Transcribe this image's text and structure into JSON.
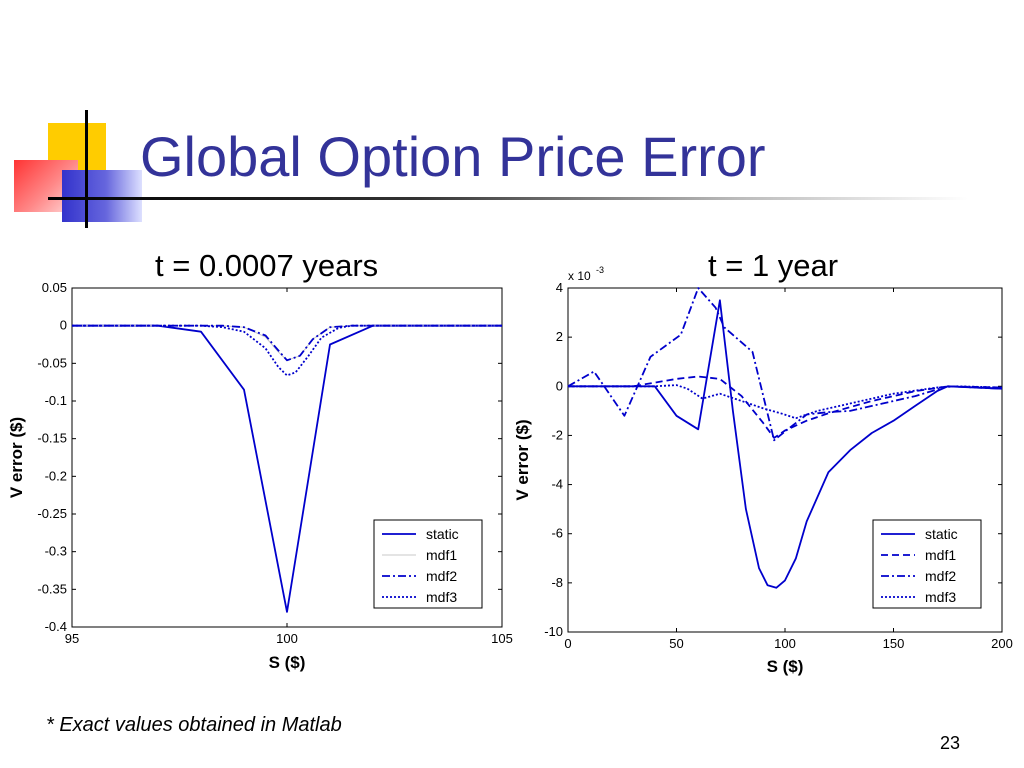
{
  "slide": {
    "title": "Global Option Price Error",
    "footnote": "* Exact values obtained in Matlab",
    "page_number": "23",
    "colors": {
      "title": "#333399",
      "deco_yellow": "#ffcc00",
      "deco_red": "#ff3333",
      "deco_blue": "#3333cc",
      "series": "#0000cc"
    }
  },
  "chart_data": [
    {
      "type": "line",
      "title": "t = 0.0007 years",
      "xlabel": "S ($)",
      "ylabel": "V error ($)",
      "xlim": [
        95,
        105
      ],
      "ylim": [
        -0.4,
        0.05
      ],
      "x_ticks": [
        95,
        100,
        105
      ],
      "y_ticks": [
        0.05,
        0,
        -0.05,
        -0.1,
        -0.15,
        -0.2,
        -0.25,
        -0.3,
        -0.35,
        -0.4
      ],
      "x_tick_labels": [
        "95",
        "100",
        "105"
      ],
      "y_tick_labels": [
        "0.05",
        "0",
        "-0.05",
        "-0.1",
        "-0.15",
        "-0.2",
        "-0.25",
        "-0.3",
        "-0.35",
        "-0.4"
      ],
      "legend_position": "bottom-right",
      "series": [
        {
          "name": "static",
          "style": "solid",
          "color": "#0000cc",
          "points": [
            [
              95,
              0
            ],
            [
              97,
              0
            ],
            [
              98,
              -0.008
            ],
            [
              99,
              -0.085
            ],
            [
              100,
              -0.38
            ],
            [
              101,
              -0.025
            ],
            [
              102,
              0
            ],
            [
              105,
              0
            ]
          ]
        },
        {
          "name": "mdf1",
          "style": "thin",
          "color": "#c8c8c8",
          "points": [
            [
              95,
              0
            ],
            [
              98.5,
              0
            ],
            [
              99,
              -0.002
            ],
            [
              99.5,
              -0.015
            ],
            [
              99.8,
              -0.035
            ],
            [
              100,
              -0.046
            ],
            [
              100.3,
              -0.04
            ],
            [
              100.6,
              -0.018
            ],
            [
              101,
              -0.002
            ],
            [
              101.5,
              0
            ],
            [
              105,
              0
            ]
          ]
        },
        {
          "name": "mdf2",
          "style": "dashdot",
          "color": "#0000cc",
          "points": [
            [
              95,
              0
            ],
            [
              98.5,
              0
            ],
            [
              99,
              -0.002
            ],
            [
              99.5,
              -0.013
            ],
            [
              99.8,
              -0.033
            ],
            [
              100,
              -0.046
            ],
            [
              100.3,
              -0.04
            ],
            [
              100.6,
              -0.018
            ],
            [
              101,
              -0.002
            ],
            [
              101.5,
              0
            ],
            [
              105,
              0
            ]
          ]
        },
        {
          "name": "mdf3",
          "style": "dotted",
          "color": "#0000cc",
          "points": [
            [
              95,
              0
            ],
            [
              98,
              0
            ],
            [
              98.5,
              -0.002
            ],
            [
              99,
              -0.008
            ],
            [
              99.5,
              -0.03
            ],
            [
              99.8,
              -0.055
            ],
            [
              100,
              -0.066
            ],
            [
              100.2,
              -0.062
            ],
            [
              100.5,
              -0.04
            ],
            [
              100.8,
              -0.016
            ],
            [
              101.2,
              -0.003
            ],
            [
              101.5,
              0
            ],
            [
              105,
              0
            ]
          ]
        }
      ]
    },
    {
      "type": "line",
      "title": "t = 1 year",
      "xlabel": "S ($)",
      "ylabel": "V error ($)",
      "exponent_label": "x 10",
      "exponent_power": "-3",
      "xlim": [
        0,
        200
      ],
      "ylim": [
        -10,
        4
      ],
      "x_ticks": [
        0,
        50,
        100,
        150,
        200
      ],
      "y_ticks": [
        4,
        2,
        0,
        -2,
        -4,
        -6,
        -8,
        -10
      ],
      "x_tick_labels": [
        "0",
        "50",
        "100",
        "150",
        "200"
      ],
      "y_tick_labels": [
        "4",
        "2",
        "0",
        "-2",
        "-4",
        "-6",
        "-8",
        "-10"
      ],
      "legend_position": "bottom-right",
      "series": [
        {
          "name": "static",
          "style": "solid",
          "color": "#0000cc",
          "points": [
            [
              0,
              0
            ],
            [
              40,
              0
            ],
            [
              50,
              -1.2
            ],
            [
              60,
              -1.75
            ],
            [
              70,
              3.5
            ],
            [
              76,
              -1
            ],
            [
              82,
              -5
            ],
            [
              88,
              -7.4
            ],
            [
              92,
              -8.1
            ],
            [
              96,
              -8.2
            ],
            [
              100,
              -7.9
            ],
            [
              105,
              -7
            ],
            [
              110,
              -5.5
            ],
            [
              120,
              -3.5
            ],
            [
              130,
              -2.6
            ],
            [
              140,
              -1.9
            ],
            [
              150,
              -1.4
            ],
            [
              160,
              -0.8
            ],
            [
              170,
              -0.2
            ],
            [
              175,
              0
            ],
            [
              200,
              -0.1
            ]
          ]
        },
        {
          "name": "mdf1",
          "style": "dashed",
          "color": "#0000cc",
          "points": [
            [
              0,
              0
            ],
            [
              30,
              0
            ],
            [
              40,
              0.15
            ],
            [
              50,
              0.3
            ],
            [
              60,
              0.4
            ],
            [
              70,
              0.3
            ],
            [
              80,
              -0.4
            ],
            [
              90,
              -1.5
            ],
            [
              95,
              -2.1
            ],
            [
              100,
              -1.8
            ],
            [
              110,
              -1.4
            ],
            [
              120,
              -1.1
            ],
            [
              140,
              -0.6
            ],
            [
              160,
              -0.2
            ],
            [
              175,
              0
            ],
            [
              200,
              -0.05
            ]
          ]
        },
        {
          "name": "mdf2",
          "style": "dashdot",
          "color": "#0000cc",
          "points": [
            [
              0,
              0
            ],
            [
              12,
              0.6
            ],
            [
              26,
              -1.2
            ],
            [
              38,
              1.2
            ],
            [
              52,
              2.1
            ],
            [
              60,
              4
            ],
            [
              68,
              3.2
            ],
            [
              72,
              2.4
            ],
            [
              85,
              1.4
            ],
            [
              95,
              -2.2
            ],
            [
              102,
              -1.7
            ],
            [
              110,
              -1.15
            ],
            [
              120,
              -1.05
            ],
            [
              130,
              -1.0
            ],
            [
              145,
              -0.7
            ],
            [
              160,
              -0.4
            ],
            [
              175,
              0
            ],
            [
              200,
              -0.1
            ]
          ]
        },
        {
          "name": "mdf3",
          "style": "dotted",
          "color": "#0000cc",
          "points": [
            [
              0,
              0
            ],
            [
              40,
              0
            ],
            [
              50,
              0.05
            ],
            [
              55,
              -0.1
            ],
            [
              62,
              -0.5
            ],
            [
              70,
              -0.3
            ],
            [
              80,
              -0.6
            ],
            [
              90,
              -0.9
            ],
            [
              98,
              -1.1
            ],
            [
              105,
              -1.3
            ],
            [
              115,
              -1.0
            ],
            [
              130,
              -0.7
            ],
            [
              150,
              -0.3
            ],
            [
              170,
              -0.05
            ],
            [
              180,
              0
            ],
            [
              200,
              -0.05
            ]
          ]
        }
      ]
    }
  ]
}
